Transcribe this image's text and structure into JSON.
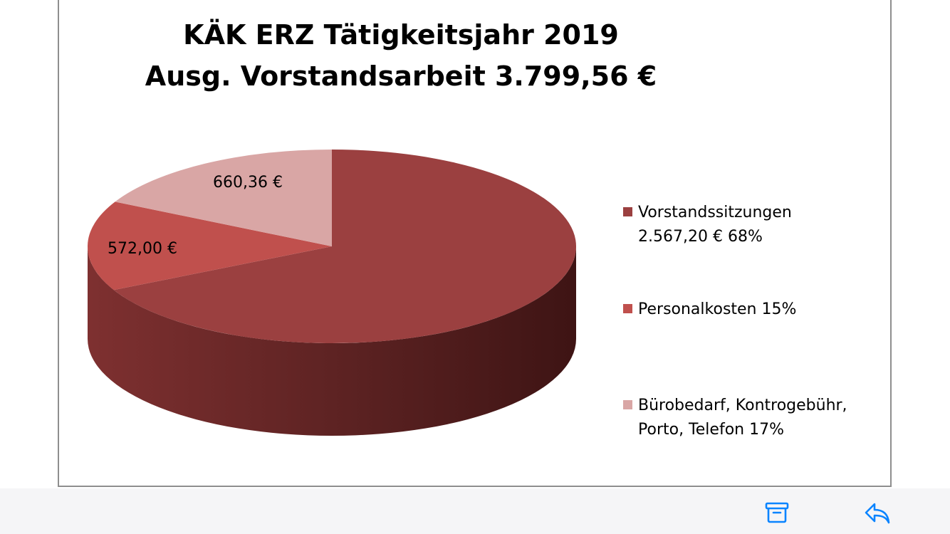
{
  "chart_data": {
    "type": "pie",
    "title": "KÄK ERZ Tätigkeitsjahr 2019",
    "subtitle": "Ausg. Vorstandsarbeit 3.799,56 €",
    "three_d": true,
    "legend_position": "right",
    "slices": [
      {
        "name": "Vorstandssitzungen",
        "legend_lines": [
          "Vorstandssitzungen",
          "2.567,20 €   68%"
        ],
        "value": 2567.2,
        "percent": 68,
        "data_label": "",
        "color": "#9b4040"
      },
      {
        "name": "Personalkosten",
        "legend_lines": [
          "Personalkosten 15%"
        ],
        "value": 572.0,
        "percent": 15,
        "data_label": "572,00 €",
        "color": "#c0504d"
      },
      {
        "name": "Bürobedarf, Kontrogebühr, Porto, Telefon",
        "legend_lines": [
          "Bürobedarf, Kontrogebühr,",
          "Porto, Telefon 17%"
        ],
        "value": 660.36,
        "percent": 17,
        "data_label": "660,36 €",
        "color": "#d9a6a5"
      }
    ]
  },
  "toolbar": {
    "icons": [
      "archive-icon",
      "reply-icon"
    ],
    "accent": "#0a84ff",
    "background": "#f5f5f7"
  }
}
